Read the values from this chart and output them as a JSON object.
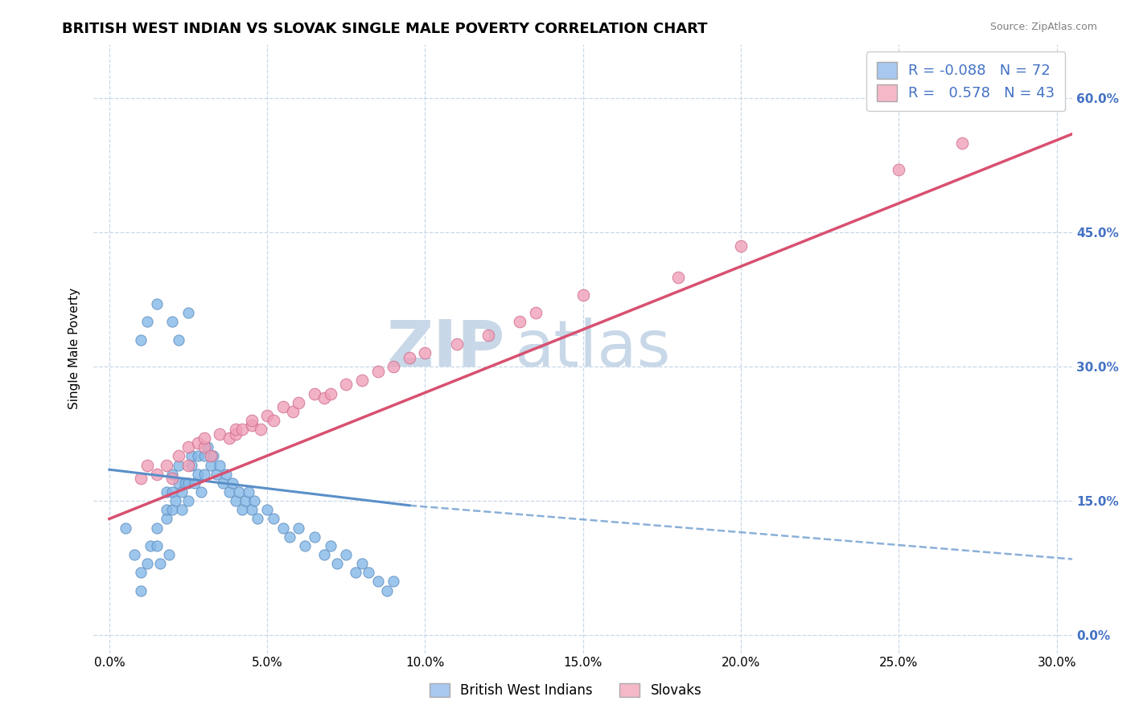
{
  "title": "BRITISH WEST INDIAN VS SLOVAK SINGLE MALE POVERTY CORRELATION CHART",
  "source": "Source: ZipAtlas.com",
  "ylabel_label": "Single Male Poverty",
  "x_tick_labels": [
    "0.0%",
    "5.0%",
    "10.0%",
    "15.0%",
    "20.0%",
    "25.0%",
    "30.0%"
  ],
  "x_tick_vals": [
    0.0,
    0.05,
    0.1,
    0.15,
    0.2,
    0.25,
    0.3
  ],
  "y_tick_vals": [
    0.0,
    0.15,
    0.3,
    0.45,
    0.6
  ],
  "y_right_tick_labels": [
    "0.0%",
    "15.0%",
    "30.0%",
    "45.0%",
    "60.0%"
  ],
  "xlim": [
    -0.005,
    0.305
  ],
  "ylim": [
    -0.02,
    0.66
  ],
  "watermark_zip": "ZIP",
  "watermark_atlas": "atlas",
  "watermark_color": "#c8d8e8",
  "blue_scatter_x": [
    0.005,
    0.008,
    0.01,
    0.01,
    0.012,
    0.013,
    0.015,
    0.015,
    0.016,
    0.018,
    0.018,
    0.018,
    0.019,
    0.02,
    0.02,
    0.02,
    0.021,
    0.022,
    0.022,
    0.023,
    0.023,
    0.024,
    0.025,
    0.025,
    0.026,
    0.026,
    0.027,
    0.028,
    0.028,
    0.029,
    0.03,
    0.03,
    0.031,
    0.032,
    0.033,
    0.034,
    0.035,
    0.036,
    0.037,
    0.038,
    0.039,
    0.04,
    0.041,
    0.042,
    0.043,
    0.044,
    0.045,
    0.046,
    0.047,
    0.05,
    0.052,
    0.055,
    0.057,
    0.06,
    0.062,
    0.065,
    0.068,
    0.07,
    0.072,
    0.075,
    0.078,
    0.08,
    0.082,
    0.085,
    0.088,
    0.09,
    0.01,
    0.012,
    0.015,
    0.02,
    0.022,
    0.025
  ],
  "blue_scatter_y": [
    0.12,
    0.09,
    0.07,
    0.05,
    0.08,
    0.1,
    0.1,
    0.12,
    0.08,
    0.13,
    0.14,
    0.16,
    0.09,
    0.14,
    0.16,
    0.18,
    0.15,
    0.17,
    0.19,
    0.14,
    0.16,
    0.17,
    0.15,
    0.17,
    0.19,
    0.2,
    0.17,
    0.18,
    0.2,
    0.16,
    0.18,
    0.2,
    0.21,
    0.19,
    0.2,
    0.18,
    0.19,
    0.17,
    0.18,
    0.16,
    0.17,
    0.15,
    0.16,
    0.14,
    0.15,
    0.16,
    0.14,
    0.15,
    0.13,
    0.14,
    0.13,
    0.12,
    0.11,
    0.12,
    0.1,
    0.11,
    0.09,
    0.1,
    0.08,
    0.09,
    0.07,
    0.08,
    0.07,
    0.06,
    0.05,
    0.06,
    0.33,
    0.35,
    0.37,
    0.35,
    0.33,
    0.36
  ],
  "pink_scatter_x": [
    0.01,
    0.012,
    0.015,
    0.018,
    0.02,
    0.022,
    0.025,
    0.025,
    0.028,
    0.03,
    0.03,
    0.032,
    0.035,
    0.038,
    0.04,
    0.04,
    0.042,
    0.045,
    0.045,
    0.048,
    0.05,
    0.052,
    0.055,
    0.058,
    0.06,
    0.065,
    0.068,
    0.07,
    0.075,
    0.08,
    0.085,
    0.09,
    0.095,
    0.1,
    0.11,
    0.12,
    0.13,
    0.135,
    0.15,
    0.18,
    0.2,
    0.25,
    0.27
  ],
  "pink_scatter_y": [
    0.175,
    0.19,
    0.18,
    0.19,
    0.175,
    0.2,
    0.19,
    0.21,
    0.215,
    0.21,
    0.22,
    0.2,
    0.225,
    0.22,
    0.225,
    0.23,
    0.23,
    0.235,
    0.24,
    0.23,
    0.245,
    0.24,
    0.255,
    0.25,
    0.26,
    0.27,
    0.265,
    0.27,
    0.28,
    0.285,
    0.295,
    0.3,
    0.31,
    0.315,
    0.325,
    0.335,
    0.35,
    0.36,
    0.38,
    0.4,
    0.435,
    0.52,
    0.55
  ],
  "blue_solid_line_x": [
    0.0,
    0.095
  ],
  "blue_solid_line_y": [
    0.185,
    0.145
  ],
  "blue_dashed_line_x": [
    0.095,
    0.305
  ],
  "blue_dashed_line_y": [
    0.145,
    0.085
  ],
  "pink_line_x": [
    0.0,
    0.305
  ],
  "pink_line_y": [
    0.13,
    0.56
  ],
  "title_fontsize": 13,
  "axis_label_fontsize": 11,
  "tick_fontsize": 11,
  "bg_color": "#ffffff",
  "grid_color": "#c8d8e8",
  "blue_scatter_color": "#85b8e8",
  "blue_scatter_edge": "#6090c0",
  "pink_scatter_color": "#f0a0b8",
  "pink_scatter_edge": "#d07090",
  "blue_line_color": "#5a8fc8",
  "pink_line_color": "#d85070",
  "right_tick_color": "#4472c4",
  "legend_box_color": "#a8c8f0",
  "legend_box2_color": "#f5b8c8",
  "legend_text_color": "#4472c4"
}
